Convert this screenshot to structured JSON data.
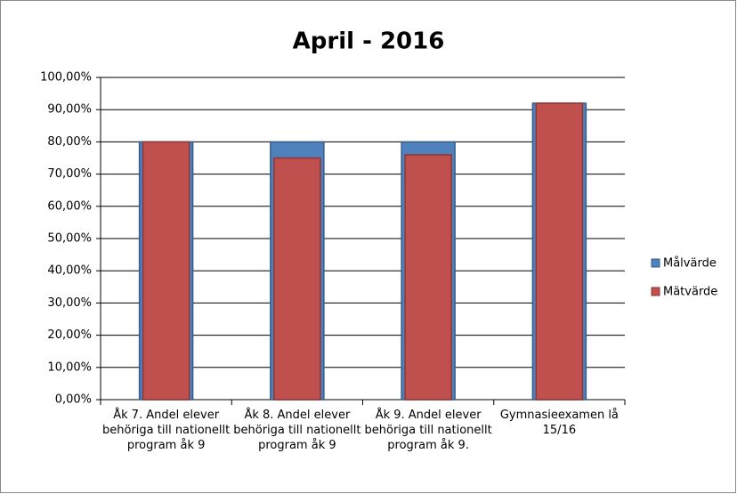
{
  "chart_data": {
    "type": "bar",
    "title": "April - 2016",
    "categories": [
      "Åk 7. Andel elever behöriga till nationellt program åk 9",
      "Åk 8. Andel elever behöriga till nationellt program åk 9",
      "Åk 9. Andel elever behöriga till nationellt program åk 9.",
      "Gymnasieexamen lå 15/16"
    ],
    "series": [
      {
        "name": "Målvärde",
        "color": "#4f81bd",
        "values": [
          80,
          80,
          80,
          92
        ]
      },
      {
        "name": "Mätvärde",
        "color": "#c0504d",
        "values": [
          80,
          75,
          76,
          92
        ]
      }
    ],
    "ylim": [
      0,
      100
    ],
    "yticks": [
      {
        "value": 0,
        "label": "0,00%"
      },
      {
        "value": 10,
        "label": "10,00%"
      },
      {
        "value": 20,
        "label": "20,00%"
      },
      {
        "value": 30,
        "label": "30,00%"
      },
      {
        "value": 40,
        "label": "40,00%"
      },
      {
        "value": 50,
        "label": "50,00%"
      },
      {
        "value": 60,
        "label": "60,00%"
      },
      {
        "value": 70,
        "label": "70,00%"
      },
      {
        "value": 80,
        "label": "80,00%"
      },
      {
        "value": 90,
        "label": "90,00%"
      },
      {
        "value": 100,
        "label": "100,00%"
      }
    ],
    "grid": true,
    "legend": "right"
  }
}
